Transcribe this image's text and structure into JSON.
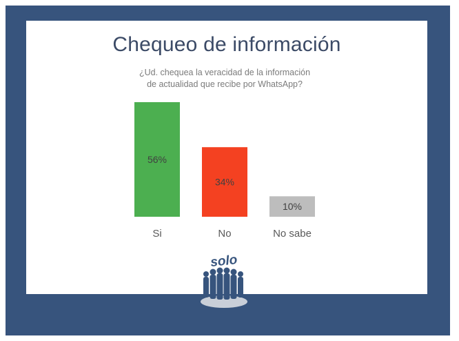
{
  "slide": {
    "title": "Chequeo de información",
    "subtitle": "¿Ud. chequea la veracidad de la información de actualidad que recibe por WhatsApp?",
    "logo_text": "solo"
  },
  "colors": {
    "frame": "#37547d",
    "title": "#3b4a66"
  },
  "chart_data": {
    "type": "bar",
    "title": "",
    "xlabel": "",
    "ylabel": "",
    "ylim": [
      0,
      56
    ],
    "grid": false,
    "categories": [
      "Si",
      "No",
      "No sabe"
    ],
    "values": [
      56,
      34,
      10
    ],
    "data_labels": [
      "56%",
      "34%",
      "10%"
    ],
    "colors": [
      "#4caf50",
      "#f44121",
      "#bdbdbd"
    ]
  }
}
